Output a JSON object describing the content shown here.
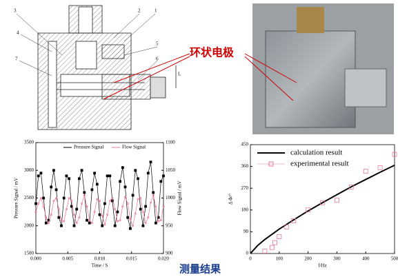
{
  "drawing_labels": [
    "1",
    "2",
    "3",
    "4",
    "5",
    "6",
    "7"
  ],
  "drawing_dimension": "L",
  "electrode_label": "环状电极",
  "caption": "测量结果",
  "chart_data": [
    {
      "type": "line",
      "xlabel": "Time / S",
      "ylabel": "Pressure Signal / mV",
      "y2label": "Flow Signal / mV",
      "x": [
        0,
        0.0004,
        0.0008,
        0.0012,
        0.0016,
        0.002,
        0.0024,
        0.0028,
        0.0032,
        0.0036,
        0.004,
        0.0044,
        0.0048,
        0.0052,
        0.0056,
        0.006,
        0.0064,
        0.0068,
        0.0072,
        0.0076,
        0.008,
        0.0084,
        0.0088,
        0.0092,
        0.0096,
        0.01,
        0.0104,
        0.0108,
        0.0112,
        0.0116,
        0.012,
        0.0124,
        0.0128,
        0.0132,
        0.0136,
        0.014,
        0.0144,
        0.0148,
        0.0152,
        0.0156,
        0.016,
        0.0164,
        0.0168,
        0.0172,
        0.0176,
        0.018,
        0.0184,
        0.0188,
        0.0192,
        0.0196,
        0.02
      ],
      "series": [
        {
          "name": "Pressure Signal",
          "color": "#000000",
          "marker": "square",
          "line": true,
          "values": [
            2400,
            2900,
            2950,
            2500,
            2050,
            2100,
            2700,
            3000,
            2650,
            2150,
            2000,
            2500,
            2900,
            2850,
            2350,
            2000,
            2300,
            2850,
            3000,
            2600,
            2100,
            2050,
            2650,
            2950,
            2750,
            2200,
            2000,
            2400,
            2900,
            2900,
            2450,
            2000,
            2250,
            2800,
            3050,
            2700,
            2150,
            1950,
            2550,
            3000,
            2850,
            2300,
            2000,
            2350,
            2950,
            3150,
            2600,
            2050,
            2150,
            2800,
            2900
          ]
        },
        {
          "name": "Flow Signal",
          "color": "#e8739a",
          "marker": "circle",
          "line": true,
          "axis": "y2",
          "values": [
            975,
            990,
            1000,
            985,
            965,
            955,
            970,
            995,
            1000,
            980,
            960,
            958,
            980,
            1000,
            995,
            970,
            955,
            965,
            990,
            1005,
            985,
            960,
            955,
            975,
            998,
            995,
            968,
            952,
            970,
            995,
            1000,
            980,
            958,
            960,
            985,
            1002,
            990,
            962,
            950,
            972,
            998,
            1000,
            975,
            955,
            965,
            992,
            1005,
            985,
            958,
            960,
            985
          ]
        }
      ],
      "xlim": [
        0,
        0.02
      ],
      "xticks": [
        {
          "value": 0,
          "label": "0.000"
        },
        {
          "value": 0.005,
          "label": "0.005"
        },
        {
          "value": 0.01,
          "label": "0.010"
        },
        {
          "value": 0.015,
          "label": "0.015"
        },
        {
          "value": 0.02,
          "label": "0.020"
        }
      ],
      "ylim": [
        1500,
        3500
      ],
      "yticks": [
        1500,
        2000,
        2500,
        3000,
        3500
      ],
      "y2lim": [
        900,
        1100
      ],
      "y2ticks": [
        900,
        950,
        1000,
        1050,
        1100
      ],
      "legend": "top"
    },
    {
      "type": "line",
      "xlabel": "f/Hz",
      "ylabel": "Δ Φ/°",
      "series": [
        {
          "name": "calculation result",
          "color": "#000000",
          "marker": "none",
          "line": true,
          "x": [
            0,
            25,
            50,
            100,
            150,
            200,
            250,
            300,
            350,
            400,
            450,
            500
          ],
          "values": [
            0,
            33,
            58,
            101,
            139,
            176,
            210,
            243,
            276,
            306,
            336,
            365
          ]
        },
        {
          "name": "experimental result",
          "color": "#e8739a",
          "marker": "square",
          "line": false,
          "x": [
            50,
            75,
            85,
            100,
            125,
            150,
            200,
            250,
            300,
            350,
            400,
            450,
            500
          ],
          "values": [
            10,
            25,
            45,
            70,
            110,
            135,
            180,
            210,
            220,
            275,
            340,
            355,
            410
          ]
        }
      ],
      "xlim": [
        0,
        500
      ],
      "xticks": [
        0,
        100,
        200,
        300,
        400,
        500
      ],
      "ylim": [
        0,
        450
      ],
      "yticks": [
        0,
        90,
        180,
        270,
        360,
        450
      ],
      "legend": "top-left"
    }
  ]
}
